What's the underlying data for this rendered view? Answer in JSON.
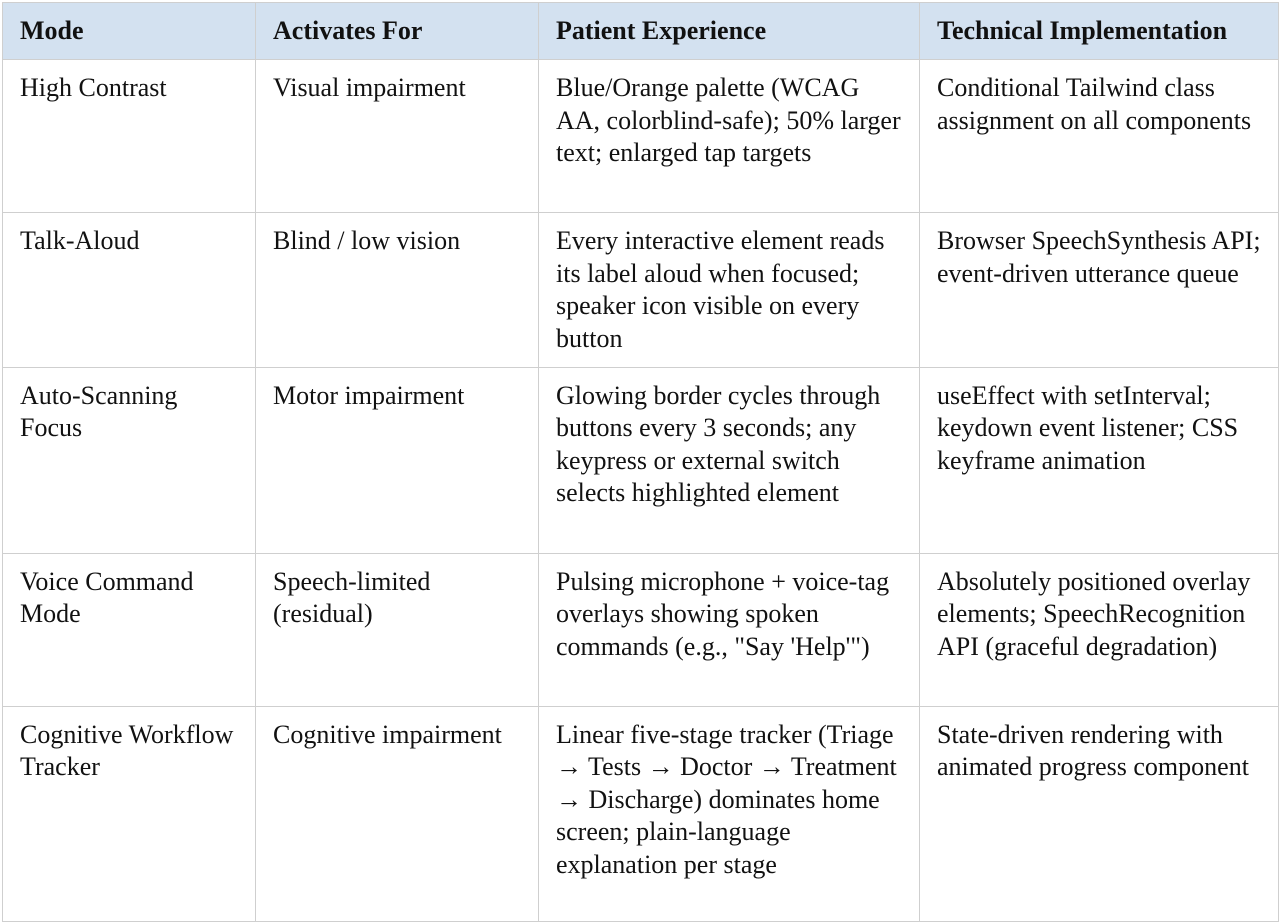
{
  "table": {
    "headers": [
      "Mode",
      "Activates For",
      "Patient Experience",
      "Technical Implementation"
    ],
    "rows": [
      {
        "mode": "High Contrast",
        "activates_for": "Visual impairment",
        "patient_experience": "Blue/Orange palette (WCAG AA, colorblind-safe); 50% larger text; enlarged tap targets",
        "technical_implementation": "Conditional Tailwind class assignment on all components"
      },
      {
        "mode": "Talk-Aloud",
        "activates_for": "Blind / low vision",
        "patient_experience": "Every interactive element reads its label aloud when focused; speaker icon visible on every button",
        "technical_implementation": "Browser SpeechSynthesis API; event-driven utterance queue"
      },
      {
        "mode": "Auto-Scanning Focus",
        "activates_for": "Motor impairment",
        "patient_experience": "Glowing border cycles through buttons every 3 seconds; any keypress or external switch selects highlighted element",
        "technical_implementation": "useEffect with setInterval; keydown event listener; CSS keyframe animation"
      },
      {
        "mode": "Voice Command Mode",
        "activates_for": "Speech-limited (residual)",
        "patient_experience": "Pulsing microphone + voice-tag overlays showing spoken commands (e.g., \"Say 'Help'\")",
        "technical_implementation": "Absolutely positioned overlay elements; SpeechRecognition API (graceful degradation)"
      },
      {
        "mode": "Cognitive Workflow Tracker",
        "activates_for": "Cognitive impairment",
        "patient_experience": "Linear five-stage tracker (Triage → Tests → Doctor → Treatment → Discharge) dominates home screen; plain-language explanation per stage",
        "technical_implementation": "State-driven rendering with animated progress component"
      }
    ]
  }
}
